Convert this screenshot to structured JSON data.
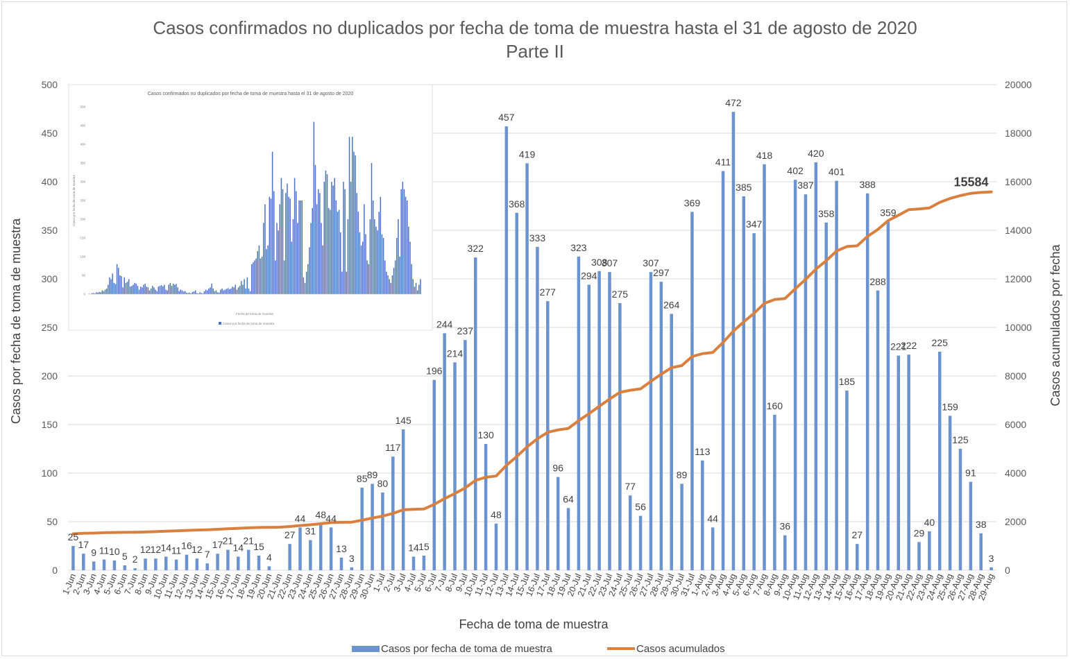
{
  "chart_data": {
    "type": "bar",
    "title": "Casos confirmados no duplicados por fecha de toma de muestra hasta el 31 de agosto de 2020",
    "subtitle": "Parte II",
    "xlabel": "Fecha de toma de muestra",
    "ylabel": "Casos por fecha de toma de muestra",
    "y2label": "Casos acumulados por fecha",
    "ylim": [
      0,
      500
    ],
    "y2lim": [
      0,
      20000
    ],
    "yticks": [
      "0",
      "50",
      "100",
      "150",
      "200",
      "250",
      "300",
      "350",
      "400",
      "450",
      "500"
    ],
    "y2ticks": [
      "0",
      "2000",
      "4000",
      "6000",
      "8000",
      "10000",
      "12000",
      "14000",
      "16000",
      "18000",
      "20000"
    ],
    "grid": true,
    "legend_position": "bottom",
    "categories": [
      "1-Jun",
      "2-Jun",
      "3-Jun",
      "4-Jun",
      "5-Jun",
      "6-Jun",
      "7-Jun",
      "8-Jun",
      "9-Jun",
      "10-Jun",
      "11-Jun",
      "12-Jun",
      "13-Jun",
      "14-Jun",
      "15-Jun",
      "16-Jun",
      "17-Jun",
      "18-Jun",
      "19-Jun",
      "20-Jun",
      "21-Jun",
      "22-Jun",
      "23-Jun",
      "24-Jun",
      "25-Jun",
      "26-Jun",
      "27-Jun",
      "28-Jun",
      "29-Jun",
      "30-Jun",
      "1-Jul",
      "2-Jul",
      "3-Jul",
      "4-Jul",
      "5-Jul",
      "6-Jul",
      "7-Jul",
      "8-Jul",
      "9-Jul",
      "10-Jul",
      "11-Jul",
      "12-Jul",
      "13-Jul",
      "14-Jul",
      "15-Jul",
      "16-Jul",
      "17-Jul",
      "18-Jul",
      "19-Jul",
      "20-Jul",
      "21-Jul",
      "22-Jul",
      "23-Jul",
      "24-Jul",
      "25-Jul",
      "26-Jul",
      "27-Jul",
      "28-Jul",
      "29-Jul",
      "30-Jul",
      "31-Jul",
      "1-Aug",
      "2-Aug",
      "3-Aug",
      "4-Aug",
      "5-Aug",
      "6-Aug",
      "7-Aug",
      "8-Aug",
      "9-Aug",
      "10-Aug",
      "11-Aug",
      "12-Aug",
      "13-Aug",
      "14-Aug",
      "15-Aug",
      "16-Aug",
      "17-Aug",
      "18-Aug",
      "19-Aug",
      "20-Aug",
      "21-Aug",
      "22-Aug",
      "23-Aug",
      "24-Aug",
      "25-Aug",
      "26-Aug",
      "27-Aug",
      "28-Aug",
      "29-Aug"
    ],
    "series": [
      {
        "name": "Casos por fecha de toma de muestra",
        "type": "bar",
        "color": "#6b93cf",
        "axis": "left",
        "values": [
          25,
          17,
          9,
          11,
          10,
          5,
          2,
          12,
          12,
          14,
          11,
          16,
          12,
          7,
          17,
          21,
          14,
          21,
          15,
          4,
          null,
          27,
          44,
          31,
          48,
          44,
          13,
          3,
          85,
          89,
          80,
          117,
          145,
          14,
          15,
          196,
          244,
          214,
          237,
          322,
          130,
          48,
          457,
          368,
          419,
          333,
          277,
          96,
          64,
          323,
          294,
          308,
          307,
          275,
          77,
          56,
          307,
          297,
          264,
          89,
          369,
          113,
          44,
          411,
          472,
          385,
          347,
          418,
          160,
          36,
          402,
          387,
          420,
          358,
          401,
          185,
          27,
          388,
          288,
          359,
          221,
          222,
          29,
          40,
          225,
          159,
          125,
          91,
          38,
          3
        ],
        "labels": [
          "25",
          "17",
          "9",
          "11",
          "10",
          "5",
          "2",
          "12",
          "12",
          "14",
          "11",
          "16",
          "12",
          "7",
          "17",
          "21",
          "14",
          "21",
          "15",
          "4",
          "",
          "27",
          "44",
          "31",
          "48",
          "44",
          "13",
          "3",
          "85",
          "89",
          "80",
          "117",
          "145",
          "14",
          "15",
          "196",
          "244",
          "214",
          "237",
          "322",
          "130",
          "48",
          "457",
          "368",
          "419",
          "333",
          "277",
          "96",
          "64",
          "323",
          "294",
          "308",
          "307",
          "275",
          "77",
          "56",
          "307",
          "297",
          "264",
          "89",
          "369",
          "113",
          "44",
          "411",
          "472",
          "385",
          "347",
          "418",
          "160",
          "36",
          "402",
          "387",
          "420",
          "358",
          "401",
          "185",
          "27",
          "388",
          "288",
          "359",
          "221",
          "222",
          "29",
          "40",
          "225",
          "159",
          "125",
          "91",
          "38",
          "3"
        ]
      },
      {
        "name": "Casos acumulados",
        "type": "line",
        "color": "#d9803e",
        "axis": "right",
        "values": [
          1500,
          1520,
          1530,
          1545,
          1555,
          1560,
          1565,
          1575,
          1590,
          1605,
          1620,
          1640,
          1655,
          1665,
          1685,
          1705,
          1725,
          1745,
          1760,
          1765,
          1770,
          1800,
          1840,
          1870,
          1915,
          1960,
          1975,
          1980,
          2060,
          2150,
          2230,
          2340,
          2490,
          2505,
          2520,
          2710,
          2950,
          3160,
          3390,
          3700,
          3830,
          3880,
          4320,
          4680,
          5080,
          5410,
          5680,
          5780,
          5840,
          6160,
          6450,
          6750,
          7050,
          7330,
          7410,
          7470,
          7780,
          8070,
          8340,
          8430,
          8800,
          8920,
          8970,
          9380,
          9850,
          10230,
          10580,
          10990,
          11150,
          11190,
          11590,
          11980,
          12400,
          12750,
          13150,
          13330,
          13360,
          13750,
          14030,
          14400,
          14620,
          14850,
          14880,
          14920,
          15150,
          15310,
          15430,
          15520,
          15560,
          15584
        ]
      }
    ],
    "annotations": [
      {
        "text": "15584",
        "series": "Casos acumulados",
        "at": "29-Aug"
      }
    ],
    "inset_chart": {
      "type": "bar",
      "title": "Casos confirmados no duplicados por fecha de toma de muestra hasta el 31 de agosto de 2020",
      "xlabel": "Fecha de toma de muestra",
      "ylabel": "Casos por fecha de toma de muestra",
      "yticks": [
        "0",
        "50",
        "100",
        "150",
        "200",
        "250",
        "300",
        "350",
        "400",
        "450",
        "500"
      ],
      "legend": "Casos por fecha de toma de muestra",
      "values": [
        1,
        0,
        2,
        3,
        2,
        5,
        4,
        6,
        5,
        10,
        8,
        12,
        15,
        25,
        45,
        40,
        55,
        30,
        27,
        80,
        70,
        50,
        48,
        18,
        45,
        30,
        33,
        40,
        20,
        22,
        25,
        30,
        28,
        22,
        12,
        20,
        18,
        25,
        28,
        20,
        18,
        10,
        15,
        22,
        18,
        12,
        8,
        20,
        22,
        24,
        21,
        25,
        12,
        10,
        25,
        30,
        22,
        28,
        25,
        27,
        18,
        8,
        12,
        10,
        7,
        8,
        4,
        3,
        4,
        2,
        6,
        7,
        10,
        3,
        2,
        5,
        3,
        2,
        8,
        12,
        10,
        15,
        18,
        28,
        15,
        8,
        10,
        5,
        4,
        12,
        15,
        10,
        12,
        14,
        16,
        13,
        15,
        20,
        18,
        25,
        12,
        18,
        22,
        35,
        25,
        40,
        15,
        45,
        15,
        8,
        80,
        85,
        90,
        95,
        115,
        130,
        95,
        100,
        190,
        240,
        120,
        130,
        260,
        255,
        380,
        275,
        90,
        190,
        170,
        240,
        310,
        280,
        90,
        270,
        295,
        260,
        255,
        140,
        200,
        310,
        275,
        190,
        250,
        250,
        250,
        45,
        30,
        60,
        80,
        125,
        190,
        230,
        460,
        345,
        240,
        280,
        270,
        190,
        130,
        300,
        330,
        320,
        230,
        225,
        300,
        290,
        310,
        250,
        220,
        225,
        165,
        60,
        300,
        280,
        60,
        200,
        420,
        300,
        420,
        380,
        370,
        270,
        220,
        165,
        130,
        140,
        240,
        160,
        90,
        80,
        200,
        350,
        250,
        200,
        180,
        170,
        220,
        260,
        160,
        150,
        90,
        60,
        50,
        40,
        30,
        50,
        70,
        90,
        150,
        200,
        100,
        280,
        300,
        280,
        260,
        250,
        180,
        140,
        80,
        40,
        20,
        30,
        10,
        25,
        40
      ]
    }
  }
}
